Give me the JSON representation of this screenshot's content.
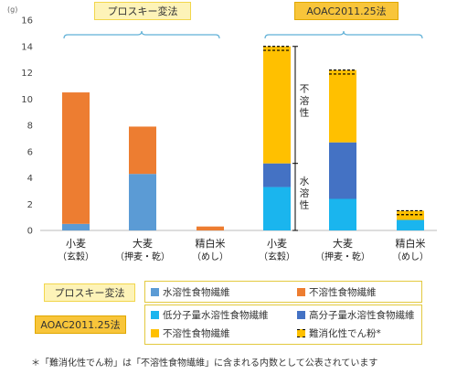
{
  "colors": {
    "soluble_prosky": "#5b9bd5",
    "insoluble_prosky": "#ed7d31",
    "low_mw": "#1ab5ee",
    "high_mw": "#4472c4",
    "insoluble_aoac": "#ffc000",
    "resistant": "#ffc000"
  },
  "header": {
    "prosky_label": "プロスキー変法",
    "aoac_label": "AOAC2011.25法"
  },
  "legend": {
    "prosky_row_label": "プロスキー変法",
    "aoac_row_label": "AOAC2011.25法",
    "soluble": "水溶性食物繊維",
    "insoluble": "不溶性食物繊維",
    "low_mw": "低分子量水溶性食物繊維",
    "high_mw": "高分子量水溶性食物繊維",
    "insoluble_aoac": "不溶性食物繊維",
    "resistant": "難消化性でん粉*"
  },
  "footnote": "＊「難消化性でん粉」は「不溶性食物繊維」に含まれる内数として公表されています",
  "chart_data": {
    "type": "bar",
    "stacked": true,
    "ylim": [
      0,
      16
    ],
    "yticks": [
      0,
      2,
      4,
      6,
      8,
      10,
      12,
      14,
      16
    ],
    "unit": "(g)",
    "bracket_labels": {
      "insoluble": "不溶性",
      "soluble": "水溶性"
    },
    "groups": [
      {
        "method": "プロスキー変法",
        "categories": [
          {
            "label1": "小麦",
            "label2": "（玄穀）",
            "segments": [
              {
                "series": "水溶性食物繊維",
                "value": 0.5,
                "color": "#5b9bd5"
              },
              {
                "series": "不溶性食物繊維",
                "value": 10.0,
                "color": "#ed7d31"
              }
            ]
          },
          {
            "label1": "大麦",
            "label2": "（押麦・乾）",
            "segments": [
              {
                "series": "水溶性食物繊維",
                "value": 4.3,
                "color": "#5b9bd5"
              },
              {
                "series": "不溶性食物繊維",
                "value": 3.6,
                "color": "#ed7d31"
              }
            ]
          },
          {
            "label1": "精白米",
            "label2": "（めし）",
            "segments": [
              {
                "series": "水溶性食物繊維",
                "value": 0.0,
                "color": "#5b9bd5"
              },
              {
                "series": "不溶性食物繊維",
                "value": 0.3,
                "color": "#ed7d31"
              }
            ]
          }
        ]
      },
      {
        "method": "AOAC2011.25法",
        "categories": [
          {
            "label1": "小麦",
            "label2": "（玄穀）",
            "resistant": 0.3,
            "segments": [
              {
                "series": "低分子量水溶性食物繊維",
                "value": 3.3,
                "color": "#1ab5ee"
              },
              {
                "series": "高分子量水溶性食物繊維",
                "value": 1.8,
                "color": "#4472c4"
              },
              {
                "series": "不溶性食物繊維",
                "value": 8.9,
                "color": "#ffc000"
              }
            ]
          },
          {
            "label1": "大麦",
            "label2": "（押麦・乾）",
            "resistant": 0.3,
            "segments": [
              {
                "series": "低分子量水溶性食物繊維",
                "value": 2.4,
                "color": "#1ab5ee"
              },
              {
                "series": "高分子量水溶性食物繊維",
                "value": 4.3,
                "color": "#4472c4"
              },
              {
                "series": "不溶性食物繊維",
                "value": 5.5,
                "color": "#ffc000"
              }
            ]
          },
          {
            "label1": "精白米",
            "label2": "（めし）",
            "resistant": 0.3,
            "segments": [
              {
                "series": "低分子量水溶性食物繊維",
                "value": 0.8,
                "color": "#1ab5ee"
              },
              {
                "series": "高分子量水溶性食物繊維",
                "value": 0.0,
                "color": "#4472c4"
              },
              {
                "series": "不溶性食物繊維",
                "value": 0.7,
                "color": "#ffc000"
              }
            ]
          }
        ]
      }
    ]
  }
}
